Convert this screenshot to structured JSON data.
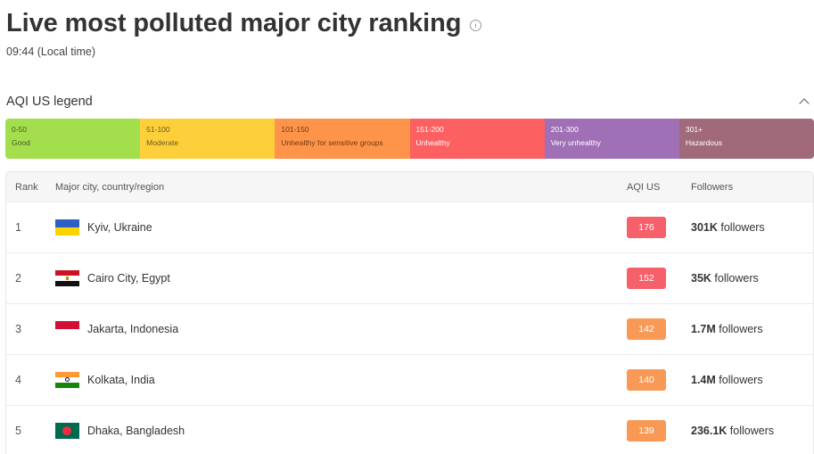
{
  "page": {
    "title": "Live most polluted major city ranking",
    "local_time": "09:44 (Local time)"
  },
  "legend": {
    "title": "AQI US legend",
    "segments": [
      {
        "range": "0-50",
        "label": "Good",
        "color": "#a3de4c",
        "text_color": "#4a5a2a"
      },
      {
        "range": "51-100",
        "label": "Moderate",
        "color": "#fdd03b",
        "text_color": "#6a5a20"
      },
      {
        "range": "101-150",
        "label": "Unhealthy for sensitive groups",
        "color": "#fe9449",
        "text_color": "#6e3a14"
      },
      {
        "range": "151-200",
        "label": "Unhealthy",
        "color": "#fd6060",
        "text_color": "#ffffff"
      },
      {
        "range": "201-300",
        "label": "Very unhealthy",
        "color": "#a070b6",
        "text_color": "#ffffff"
      },
      {
        "range": "301+",
        "label": "Hazardous",
        "color": "#a06a7b",
        "text_color": "#ffffff"
      }
    ]
  },
  "table": {
    "headers": {
      "rank": "Rank",
      "city": "Major city, country/region",
      "aqi": "AQI US",
      "followers": "Followers"
    },
    "rows": [
      {
        "rank": "1",
        "city": "Kyiv, Ukraine",
        "flag": "ukraine-flag-icon",
        "aqi": "176",
        "aqi_color": "#f6606a",
        "followers_count": "301K",
        "followers_suffix": " followers"
      },
      {
        "rank": "2",
        "city": "Cairo City, Egypt",
        "flag": "egypt-flag-icon",
        "aqi": "152",
        "aqi_color": "#f6606a",
        "followers_count": "35K",
        "followers_suffix": " followers"
      },
      {
        "rank": "3",
        "city": "Jakarta, Indonesia",
        "flag": "indonesia-flag-icon",
        "aqi": "142",
        "aqi_color": "#f89a56",
        "followers_count": "1.7M",
        "followers_suffix": " followers"
      },
      {
        "rank": "4",
        "city": "Kolkata, India",
        "flag": "india-flag-icon",
        "aqi": "140",
        "aqi_color": "#f89a56",
        "followers_count": "1.4M",
        "followers_suffix": " followers"
      },
      {
        "rank": "5",
        "city": "Dhaka, Bangladesh",
        "flag": "bangladesh-flag-icon",
        "aqi": "139",
        "aqi_color": "#f89a56",
        "followers_count": "236.1K",
        "followers_suffix": " followers"
      }
    ]
  }
}
